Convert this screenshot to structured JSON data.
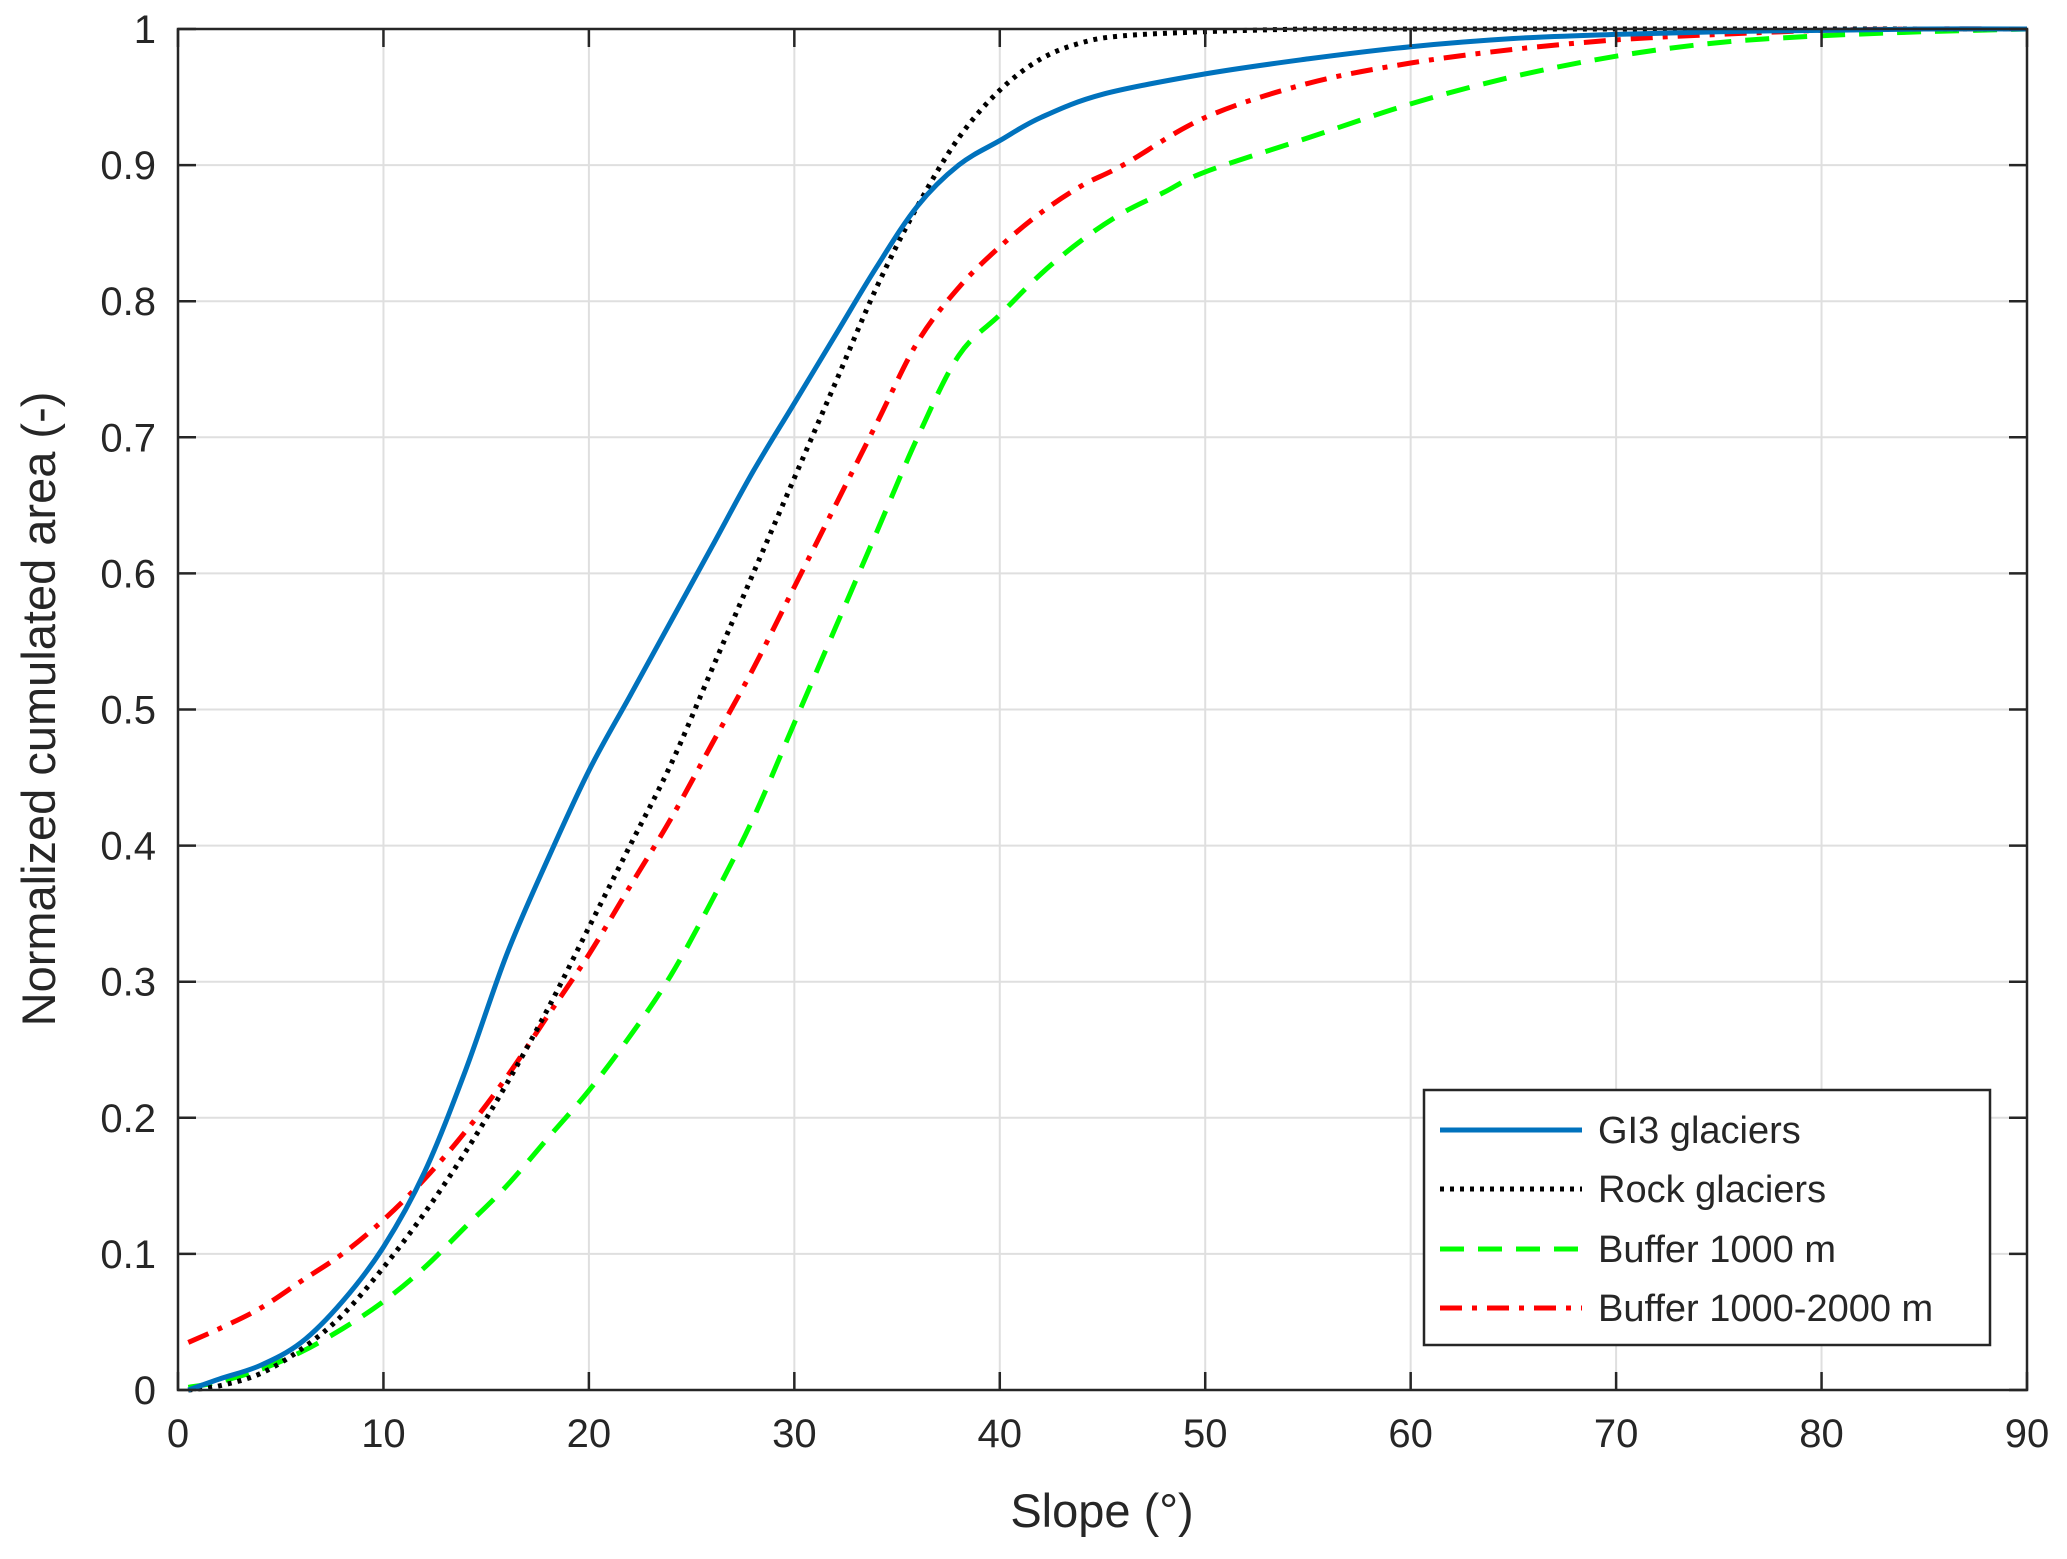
{
  "chart_data": {
    "type": "line",
    "title": "",
    "xlabel": "Slope (°)",
    "ylabel": "Normalized cumulated area (-)",
    "xlim": [
      0,
      90
    ],
    "ylim": [
      0,
      1
    ],
    "xticks": [
      0,
      10,
      20,
      30,
      40,
      50,
      60,
      70,
      80,
      90
    ],
    "xtick_labels": [
      "0",
      "10",
      "20",
      "30",
      "40",
      "50",
      "60",
      "70",
      "80",
      "90"
    ],
    "yticks": [
      0,
      0.1,
      0.2,
      0.3,
      0.4,
      0.5,
      0.6,
      0.7,
      0.8,
      0.9,
      1
    ],
    "ytick_labels": [
      "0",
      "0.1",
      "0.2",
      "0.3",
      "0.4",
      "0.5",
      "0.6",
      "0.7",
      "0.8",
      "0.9",
      "1"
    ],
    "grid": true,
    "legend": {
      "position": "bottom-right"
    },
    "series": [
      {
        "name": "GI3 glaciers",
        "color": "#0072BD",
        "style": "solid",
        "x": [
          0.5,
          2,
          4,
          6,
          8,
          10,
          12,
          14,
          16,
          18,
          20,
          22,
          24,
          26,
          28,
          30,
          32,
          34,
          36,
          38,
          40,
          42,
          45,
          50,
          55,
          60,
          65,
          70,
          75,
          80,
          85,
          90
        ],
        "y": [
          0.0,
          0.008,
          0.018,
          0.035,
          0.065,
          0.105,
          0.16,
          0.235,
          0.32,
          0.39,
          0.455,
          0.51,
          0.565,
          0.62,
          0.675,
          0.725,
          0.775,
          0.825,
          0.87,
          0.9,
          0.918,
          0.935,
          0.952,
          0.967,
          0.978,
          0.987,
          0.993,
          0.996,
          0.998,
          0.999,
          1.0,
          1.0
        ]
      },
      {
        "name": "Rock glaciers",
        "color": "#000000",
        "style": "dotted",
        "x": [
          0.5,
          2,
          4,
          6,
          8,
          10,
          12,
          14,
          16,
          18,
          20,
          22,
          24,
          26,
          28,
          30,
          32,
          34,
          36,
          38,
          40,
          42,
          44,
          46,
          50,
          55,
          60,
          65,
          70,
          80,
          90
        ],
        "y": [
          0.0,
          0.003,
          0.012,
          0.03,
          0.055,
          0.09,
          0.13,
          0.175,
          0.225,
          0.28,
          0.34,
          0.4,
          0.46,
          0.53,
          0.6,
          0.67,
          0.74,
          0.81,
          0.87,
          0.92,
          0.955,
          0.978,
          0.99,
          0.995,
          0.998,
          1.0,
          1.0,
          1.0,
          1.0,
          1.0,
          1.0
        ]
      },
      {
        "name": "Buffer 1000 m",
        "color": "#00FF00",
        "style": "dashed",
        "x": [
          0.5,
          2,
          4,
          6,
          8,
          10,
          12,
          14,
          16,
          18,
          20,
          22,
          24,
          26,
          28,
          30,
          32,
          34,
          36,
          38,
          40,
          42,
          44,
          46,
          48,
          50,
          55,
          60,
          65,
          70,
          75,
          80,
          85,
          90
        ],
        "y": [
          0.002,
          0.006,
          0.015,
          0.028,
          0.045,
          0.065,
          0.09,
          0.12,
          0.15,
          0.185,
          0.22,
          0.26,
          0.305,
          0.36,
          0.42,
          0.49,
          0.56,
          0.63,
          0.7,
          0.76,
          0.79,
          0.82,
          0.845,
          0.865,
          0.88,
          0.895,
          0.92,
          0.945,
          0.965,
          0.98,
          0.99,
          0.995,
          0.998,
          1.0
        ]
      },
      {
        "name": "Buffer 1000-2000 m",
        "color": "#FF0000",
        "style": "dashdot",
        "x": [
          0.5,
          2,
          4,
          6,
          8,
          10,
          12,
          14,
          16,
          18,
          20,
          22,
          24,
          26,
          28,
          30,
          32,
          34,
          36,
          38,
          40,
          42,
          44,
          46,
          50,
          55,
          60,
          65,
          70,
          75,
          80,
          85,
          90
        ],
        "y": [
          0.035,
          0.045,
          0.06,
          0.08,
          0.1,
          0.125,
          0.155,
          0.19,
          0.23,
          0.275,
          0.32,
          0.37,
          0.42,
          0.475,
          0.53,
          0.59,
          0.65,
          0.71,
          0.77,
          0.81,
          0.84,
          0.865,
          0.885,
          0.9,
          0.935,
          0.96,
          0.975,
          0.985,
          0.992,
          0.996,
          0.999,
          1.0,
          1.0
        ]
      }
    ]
  }
}
